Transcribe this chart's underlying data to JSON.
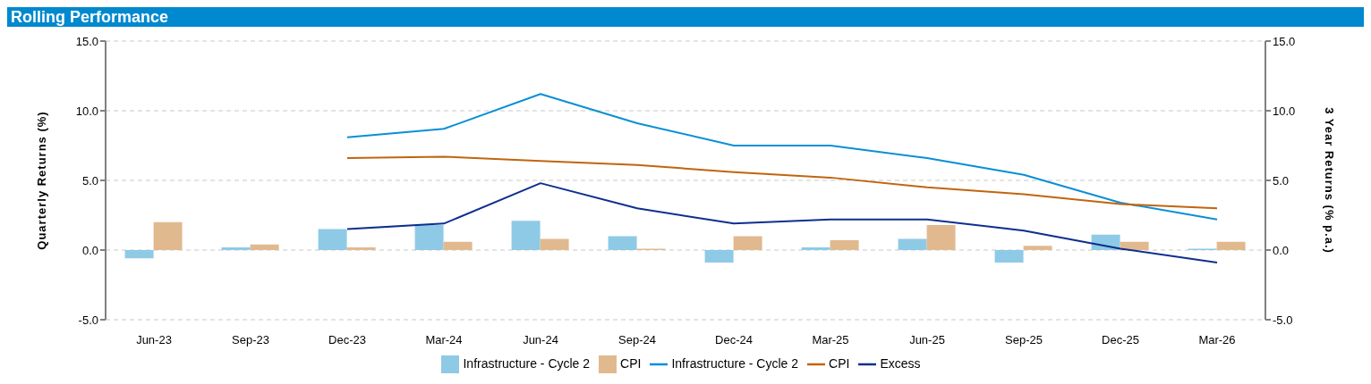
{
  "chart_data": {
    "type": "bar",
    "title": "Rolling Performance",
    "ylabel": "Quarterly Returns (%)",
    "y2label": "3 Year Returns (% p.a.)",
    "categories": [
      "Jun-23",
      "Sep-23",
      "Dec-23",
      "Mar-24",
      "Jun-24",
      "Sep-24",
      "Dec-24",
      "Mar-25",
      "Jun-25",
      "Sep-25",
      "Dec-25",
      "Mar-26"
    ],
    "series": [
      {
        "name": "Infrastructure - Cycle 2",
        "color": "#8ecae6",
        "values": [
          -0.6,
          0.2,
          1.5,
          1.8,
          2.1,
          1.0,
          -0.9,
          0.2,
          0.8,
          -0.9,
          1.1,
          0.1
        ]
      },
      {
        "name": "CPI",
        "color": "#e1b98f",
        "values": [
          2.0,
          0.4,
          0.2,
          0.6,
          0.8,
          0.1,
          1.0,
          0.7,
          1.8,
          0.3,
          0.6,
          0.6
        ]
      },
      {
        "name": "Infrastructure - Cycle 2",
        "type": "line",
        "axis": "y2",
        "color": "#0a8fd6",
        "values": [
          null,
          null,
          8.1,
          8.7,
          11.2,
          9.1,
          7.5,
          7.5,
          6.6,
          5.4,
          3.4,
          2.2
        ]
      },
      {
        "name": "CPI",
        "type": "line",
        "axis": "y2",
        "color": "#c0650f",
        "values": [
          null,
          null,
          6.6,
          6.7,
          6.4,
          6.1,
          5.6,
          5.2,
          4.5,
          4.0,
          3.3,
          3.0
        ]
      },
      {
        "name": "Excess",
        "type": "line",
        "axis": "y2",
        "color": "#0d2f8f",
        "values": [
          null,
          null,
          1.5,
          1.9,
          4.8,
          3.0,
          1.9,
          2.2,
          2.2,
          1.4,
          0.1,
          -0.9
        ]
      }
    ],
    "ylim": [
      -5,
      15
    ],
    "yticks": [
      {
        "value": -5,
        "label": "-5.0"
      },
      {
        "value": 0,
        "label": "0.0"
      },
      {
        "value": 5,
        "label": "5.0"
      },
      {
        "value": 10,
        "label": "10.0"
      },
      {
        "value": 15,
        "label": "15.0"
      }
    ],
    "y2lim": [
      -5,
      15
    ],
    "y2ticks": [
      {
        "value": -5,
        "label": "-5.0"
      },
      {
        "value": 0,
        "label": "0.0"
      },
      {
        "value": 5,
        "label": "5.0"
      },
      {
        "value": 10,
        "label": "10.0"
      },
      {
        "value": 15,
        "label": "15.0"
      }
    ],
    "grid": "y",
    "legend": "bottom",
    "marker": "none",
    "line_style": "solid"
  }
}
